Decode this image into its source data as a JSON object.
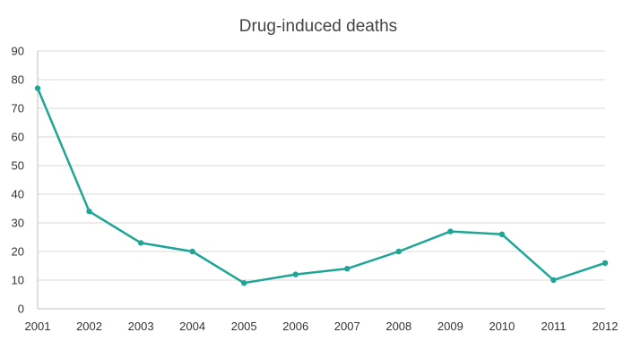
{
  "chart_data": {
    "type": "line",
    "title": "Drug-induced deaths",
    "xlabel": "",
    "ylabel": "",
    "categories": [
      "2001",
      "2002",
      "2003",
      "2004",
      "2005",
      "2006",
      "2007",
      "2008",
      "2009",
      "2010",
      "2011",
      "2012"
    ],
    "series": [
      {
        "name": "Drug-induced deaths",
        "values": [
          77,
          34,
          23,
          20,
          9,
          12,
          14,
          20,
          27,
          26,
          10,
          16
        ],
        "color": "#1fa595"
      }
    ],
    "ylim": [
      0,
      90
    ],
    "yticks": [
      0,
      10,
      20,
      30,
      40,
      50,
      60,
      70,
      80,
      90
    ],
    "grid": true,
    "legend": "none"
  }
}
